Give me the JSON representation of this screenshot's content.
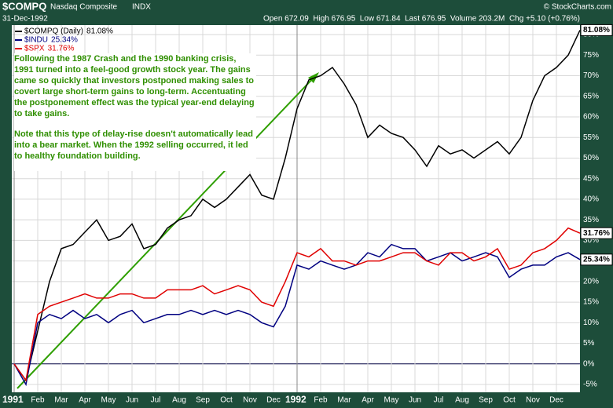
{
  "header": {
    "symbol": "$COMPQ",
    "name": "Nasdaq Composite",
    "exchange": "INDX",
    "date": "31-Dec-1992",
    "quote": "Open 672.09  High 676.95  Low 671.84  Last 676.95  Volume 203.2M  Chg +5.10 (+0.76%)",
    "credit": "© StockCharts.com"
  },
  "chart_data": {
    "type": "line",
    "annotation": [
      "Following the 1987 Crash and the 1990 banking crisis, 1991 turned into a feel-good growth stock year. The gains came so quickly that investors postponed making sales to covert large short-term gains to long-term. Accentuating the postponement effect was the typical year-end delaying to take gains.",
      "Note that this type of delay-rise doesn't automatically lead into a bear market. When the 1992 selling occurred, it led to healthy foundation building."
    ],
    "categories": [
      "1991",
      null,
      "Feb",
      null,
      "Mar",
      null,
      "Apr",
      null,
      "May",
      null,
      "Jun",
      null,
      "Jul",
      null,
      "Aug",
      null,
      "Sep",
      null,
      "Oct",
      null,
      "Nov",
      null,
      "Dec",
      null,
      "1992",
      null,
      "Feb",
      null,
      "Mar",
      null,
      "Apr",
      null,
      "May",
      null,
      "Jun",
      null,
      "Jul",
      null,
      "Aug",
      null,
      "Sep",
      null,
      "Oct",
      null,
      "Nov",
      null,
      "Dec",
      null,
      null
    ],
    "series": [
      {
        "name": "$COMPQ (Daily)",
        "last_label": "81.08%",
        "color": "#000000",
        "values": [
          0,
          -4,
          8,
          20,
          28,
          29,
          32,
          35,
          30,
          31,
          34,
          28,
          29,
          33,
          35,
          36,
          40,
          38,
          40,
          43,
          46,
          41,
          40,
          50,
          62,
          69,
          70,
          72,
          68,
          63,
          55,
          58,
          56,
          55,
          52,
          48,
          53,
          51,
          52,
          50,
          52,
          54,
          51,
          55,
          64,
          70,
          72,
          75,
          81.08
        ]
      },
      {
        "name": "$INDU",
        "last_label": "25.34%",
        "color": "#000080",
        "values": [
          0,
          -5,
          10,
          12,
          11,
          13,
          11,
          12,
          10,
          12,
          13,
          10,
          11,
          12,
          12,
          13,
          12,
          13,
          12,
          13,
          12,
          10,
          9,
          14,
          24,
          23,
          25,
          24,
          23,
          24,
          27,
          26,
          29,
          28,
          28,
          25,
          26,
          27,
          25,
          26,
          27,
          26,
          21,
          23,
          24,
          24,
          26,
          27,
          25.34
        ]
      },
      {
        "name": "$SPX",
        "last_label": "31.76%",
        "color": "#e00000",
        "values": [
          0,
          -4,
          12,
          14,
          15,
          16,
          17,
          16,
          16,
          17,
          17,
          16,
          16,
          18,
          18,
          18,
          19,
          17,
          18,
          19,
          18,
          15,
          14,
          20,
          27,
          26,
          28,
          25,
          25,
          24,
          25,
          25,
          26,
          27,
          27,
          25,
          24,
          27,
          27,
          25,
          26,
          28,
          23,
          24,
          27,
          28,
          30,
          33,
          31.76
        ]
      }
    ],
    "ylim": [
      -6.9,
      82.3
    ],
    "yticks": [
      {
        "value": -5,
        "label": "-5%"
      },
      {
        "value": 0,
        "label": "0%"
      },
      {
        "value": 5,
        "label": "5%"
      },
      {
        "value": 10,
        "label": "10%"
      },
      {
        "value": 15,
        "label": "15%"
      },
      {
        "value": 20,
        "label": "20%"
      },
      {
        "value": 25,
        "label": "25%"
      },
      {
        "value": 30,
        "label": "30%"
      },
      {
        "value": 35,
        "label": "35%"
      },
      {
        "value": 40,
        "label": "40%"
      },
      {
        "value": 45,
        "label": "45%"
      },
      {
        "value": 50,
        "label": "50%"
      },
      {
        "value": 55,
        "label": "55%"
      },
      {
        "value": 60,
        "label": "60%"
      },
      {
        "value": 65,
        "label": "65%"
      },
      {
        "value": 70,
        "label": "70%"
      },
      {
        "value": 75,
        "label": "75%"
      },
      {
        "value": 80,
        "label": "80%"
      }
    ],
    "grid": true
  }
}
